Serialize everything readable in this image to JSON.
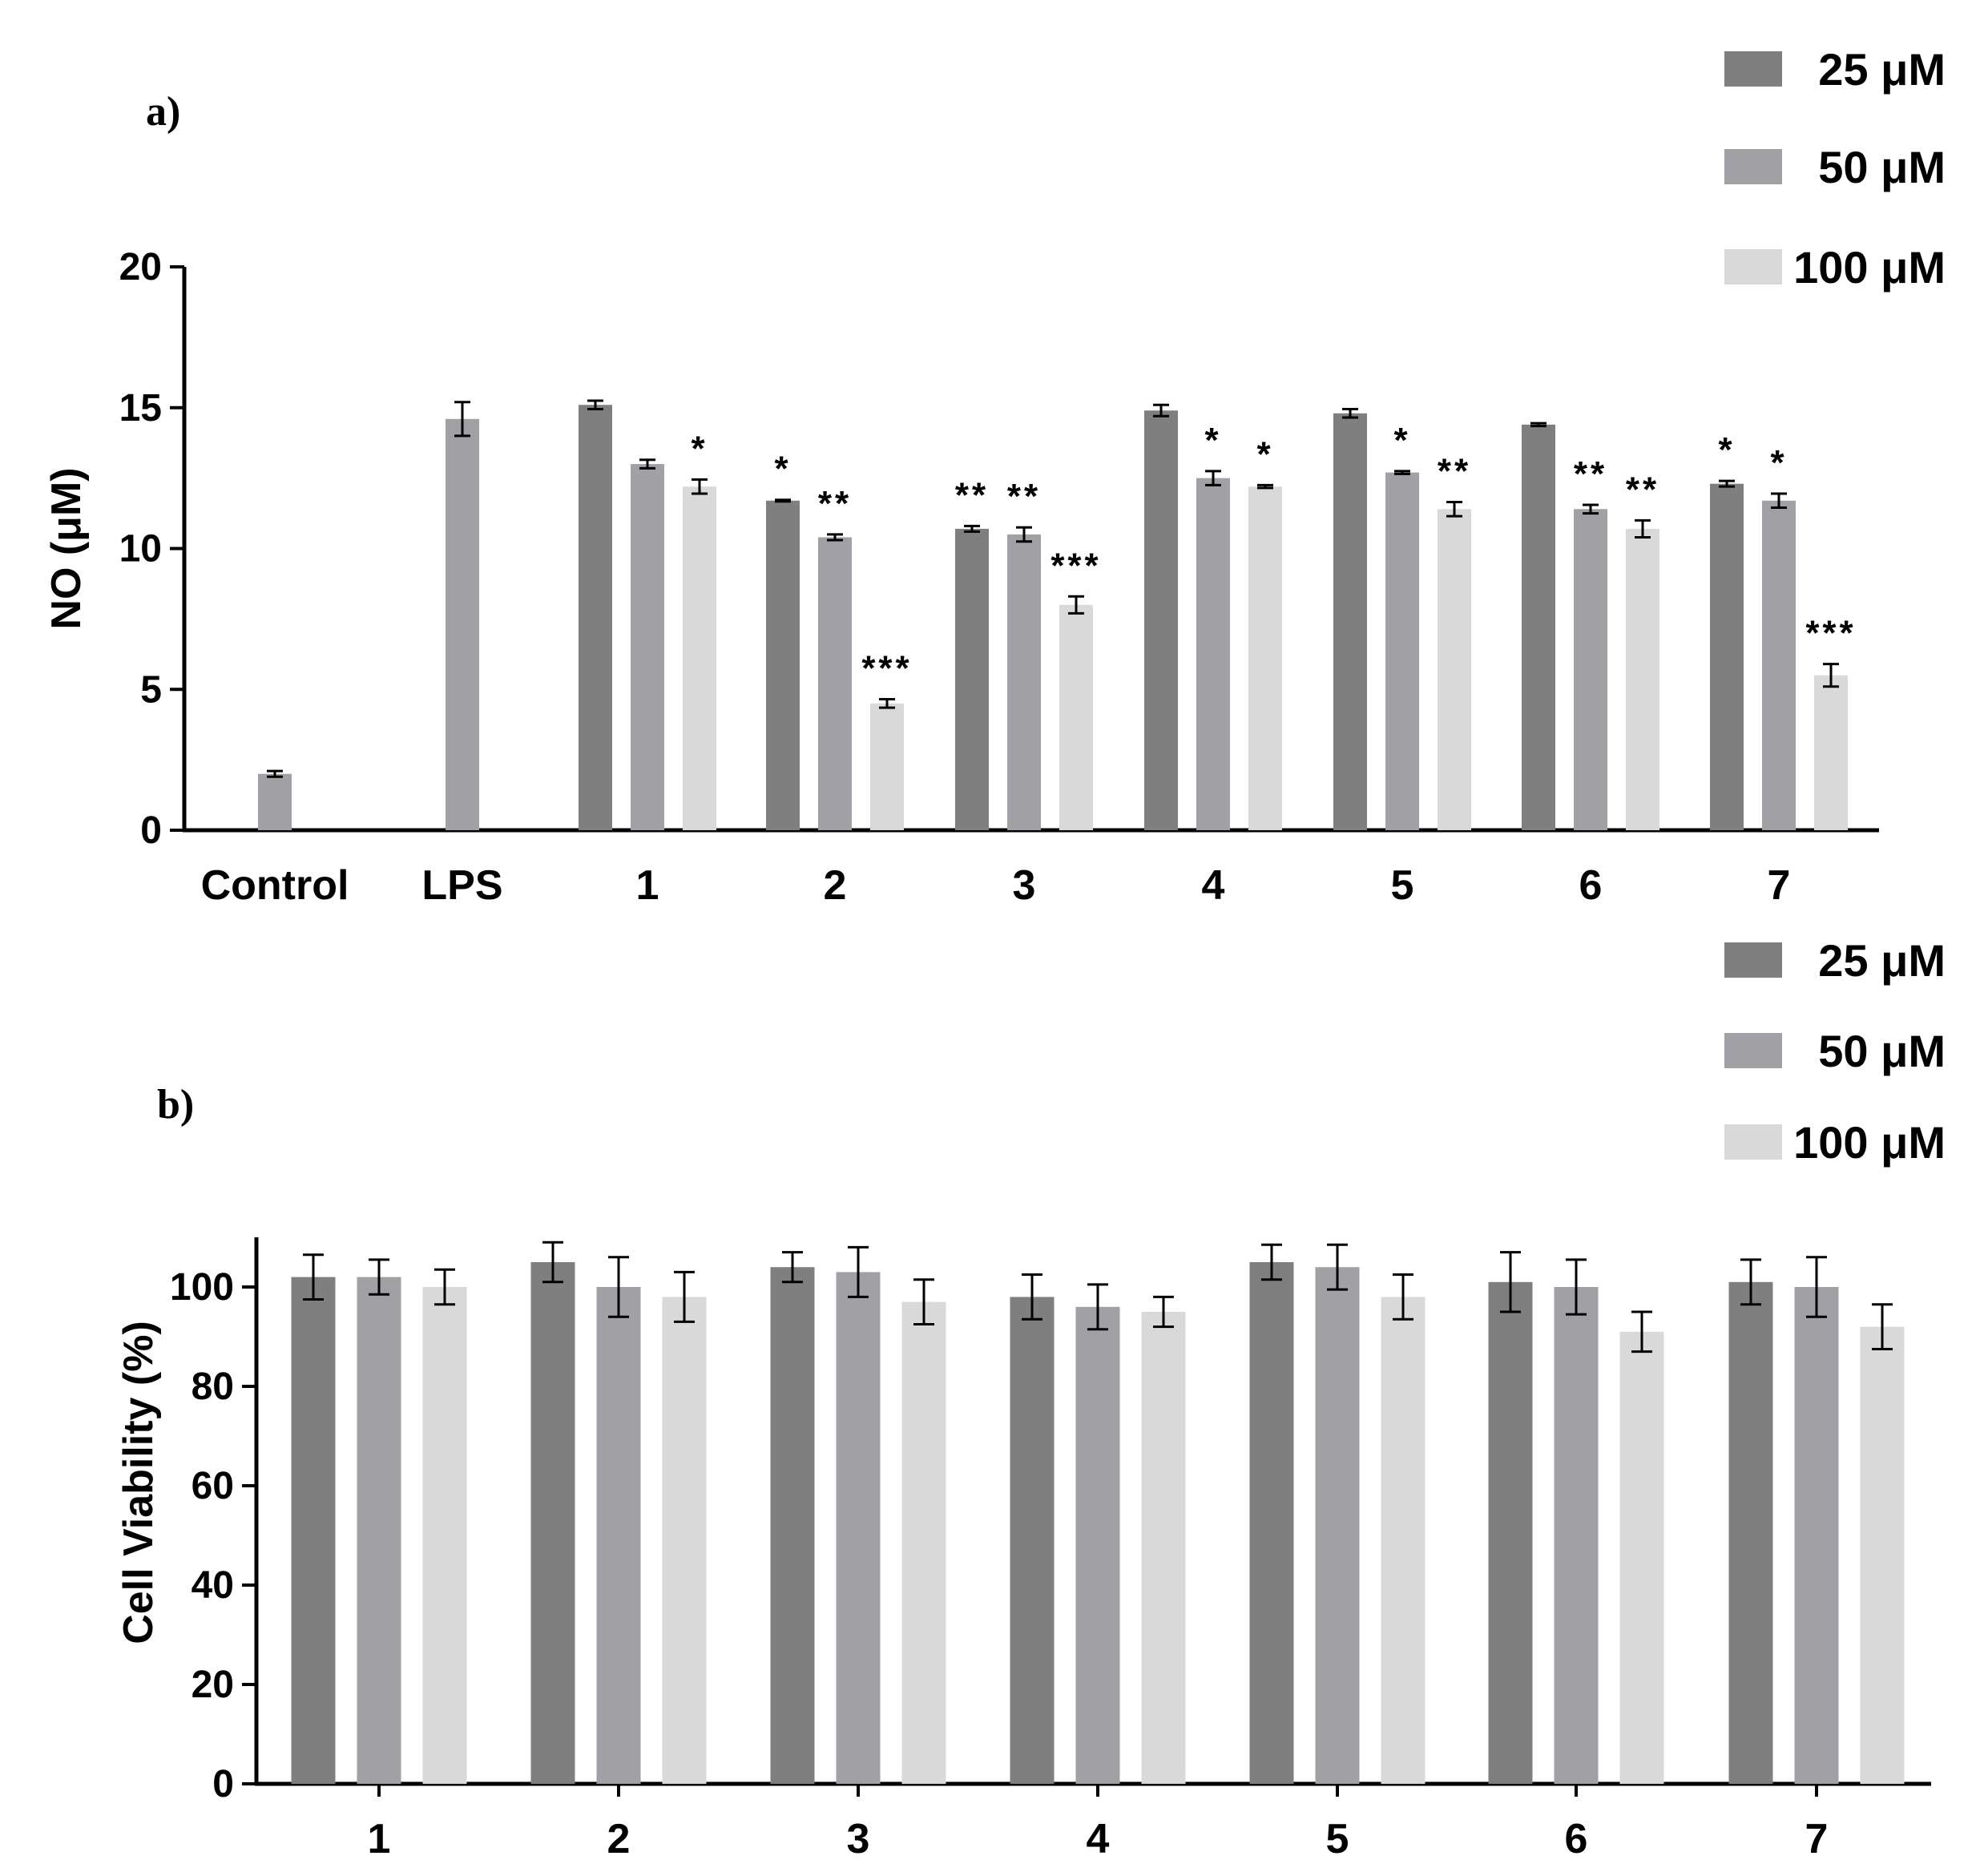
{
  "chart_data": [
    {
      "type": "bar",
      "panel_label": "a)",
      "ylabel": "NO (μM)",
      "xlabel": "",
      "ylim": [
        0,
        20
      ],
      "yticks": [
        0,
        5,
        10,
        15,
        20
      ],
      "categories": [
        "Control",
        "LPS",
        "1",
        "2",
        "3",
        "4",
        "5",
        "6",
        "7"
      ],
      "legend": {
        "position": "top-right",
        "entries": [
          "25 μM",
          "50 μM",
          "100 μM"
        ]
      },
      "colors": {
        "25 μM": "#7f7f7f",
        "50 μM": "#a1a1a5",
        "100 μM": "#d9d9d9"
      },
      "bars": [
        {
          "category": "Control",
          "series": "50 μM",
          "value": 2.0,
          "error": 0.1,
          "sig": ""
        },
        {
          "category": "LPS",
          "series": "50 μM",
          "value": 14.6,
          "error": 0.6,
          "sig": ""
        },
        {
          "category": "1",
          "series": "25 μM",
          "value": 15.1,
          "error": 0.15,
          "sig": ""
        },
        {
          "category": "1",
          "series": "50 μM",
          "value": 13.0,
          "error": 0.15,
          "sig": ""
        },
        {
          "category": "1",
          "series": "100 μM",
          "value": 12.2,
          "error": 0.25,
          "sig": "*"
        },
        {
          "category": "2",
          "series": "25 μM",
          "value": 11.7,
          "error": 0.03,
          "sig": "*"
        },
        {
          "category": "2",
          "series": "50 μM",
          "value": 10.4,
          "error": 0.1,
          "sig": "**"
        },
        {
          "category": "2",
          "series": "100 μM",
          "value": 4.5,
          "error": 0.15,
          "sig": "***"
        },
        {
          "category": "3",
          "series": "25 μM",
          "value": 10.7,
          "error": 0.1,
          "sig": "**"
        },
        {
          "category": "3",
          "series": "50 μM",
          "value": 10.5,
          "error": 0.25,
          "sig": "**"
        },
        {
          "category": "3",
          "series": "100 μM",
          "value": 8.0,
          "error": 0.3,
          "sig": "***"
        },
        {
          "category": "4",
          "series": "25 μM",
          "value": 14.9,
          "error": 0.2,
          "sig": ""
        },
        {
          "category": "4",
          "series": "50 μM",
          "value": 12.5,
          "error": 0.25,
          "sig": "*"
        },
        {
          "category": "4",
          "series": "100 μM",
          "value": 12.2,
          "error": 0.05,
          "sig": "*"
        },
        {
          "category": "5",
          "series": "25 μM",
          "value": 14.8,
          "error": 0.15,
          "sig": ""
        },
        {
          "category": "5",
          "series": "50 μM",
          "value": 12.7,
          "error": 0.05,
          "sig": "*"
        },
        {
          "category": "5",
          "series": "100 μM",
          "value": 11.4,
          "error": 0.25,
          "sig": "**"
        },
        {
          "category": "6",
          "series": "25 μM",
          "value": 14.4,
          "error": 0.05,
          "sig": ""
        },
        {
          "category": "6",
          "series": "50 μM",
          "value": 11.4,
          "error": 0.15,
          "sig": "**"
        },
        {
          "category": "6",
          "series": "100 μM",
          "value": 10.7,
          "error": 0.3,
          "sig": "**"
        },
        {
          "category": "7",
          "series": "25 μM",
          "value": 12.3,
          "error": 0.1,
          "sig": "*"
        },
        {
          "category": "7",
          "series": "50 μM",
          "value": 11.7,
          "error": 0.25,
          "sig": "*"
        },
        {
          "category": "7",
          "series": "100 μM",
          "value": 5.5,
          "error": 0.4,
          "sig": "***"
        }
      ]
    },
    {
      "type": "bar",
      "panel_label": "b)",
      "ylabel": "Cell Viability (%)",
      "xlabel": "",
      "ylim": [
        0,
        110
      ],
      "yticks": [
        0,
        20,
        40,
        60,
        80,
        100
      ],
      "categories": [
        "1",
        "2",
        "3",
        "4",
        "5",
        "6",
        "7"
      ],
      "legend": {
        "position": "top-right",
        "entries": [
          "25 μM",
          "50 μM",
          "100 μM"
        ]
      },
      "colors": {
        "25 μM": "#7f7f7f",
        "50 μM": "#a1a1a5",
        "100 μM": "#d9d9d9"
      },
      "series": [
        {
          "name": "25 μM",
          "values": [
            102,
            105,
            104,
            98,
            105,
            101,
            101
          ],
          "errors": [
            4.5,
            4,
            3,
            4.5,
            3.5,
            6,
            4.5
          ]
        },
        {
          "name": "50 μM",
          "values": [
            102,
            100,
            103,
            96,
            104,
            100,
            100
          ],
          "errors": [
            3.5,
            6,
            5,
            4.5,
            4.5,
            5.5,
            6
          ]
        },
        {
          "name": "100 μM",
          "values": [
            100,
            98,
            97,
            95,
            98,
            91,
            92
          ],
          "errors": [
            3.5,
            5,
            4.5,
            3,
            4.5,
            4,
            4.5
          ]
        }
      ]
    }
  ]
}
